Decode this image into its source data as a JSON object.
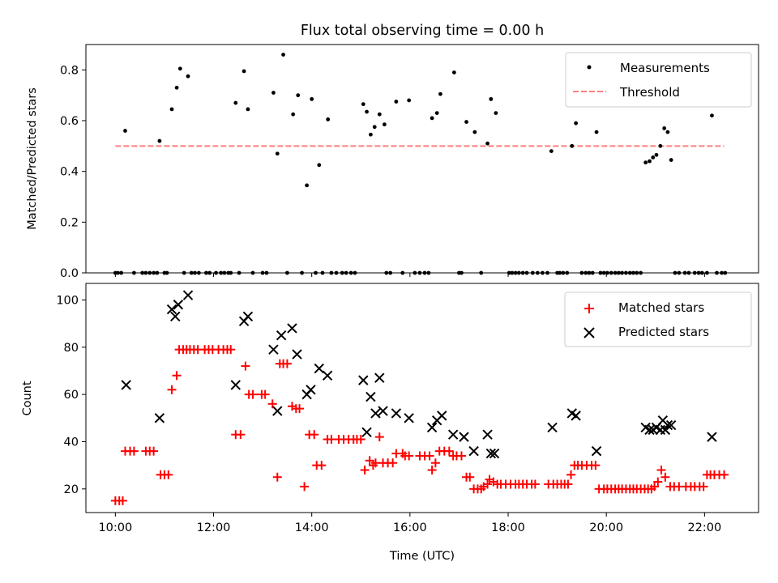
{
  "figure": {
    "title": "Flux total observing time = 0.00 h"
  },
  "chart_data": [
    {
      "type": "scatter",
      "panel": "top",
      "xlabel": "",
      "ylabel": "Matched/Predicted stars",
      "xlim": [
        9.4,
        23.1
      ],
      "ylim": [
        0,
        0.9
      ],
      "yticks": [
        0.0,
        0.2,
        0.4,
        0.6,
        0.8
      ],
      "ytick_labels": [
        "0.0",
        "0.2",
        "0.4",
        "0.6",
        "0.8"
      ],
      "xticks": [
        10,
        12,
        14,
        16,
        18,
        20,
        22
      ],
      "grid": false,
      "legend_position": "top-right",
      "threshold": {
        "name": "Threshold",
        "y": 0.5,
        "x": [
          10.0,
          22.4
        ],
        "color": "#ff7f7f",
        "style": "dashed"
      },
      "series": [
        {
          "name": "Measurements",
          "color": "#000000",
          "marker": "dot",
          "x": [
            10.2,
            10.9,
            11.15,
            11.25,
            11.32,
            11.48,
            12.45,
            12.62,
            12.7,
            13.22,
            13.3,
            13.42,
            13.62,
            13.72,
            13.9,
            14.0,
            14.15,
            14.33,
            15.05,
            15.12,
            15.2,
            15.28,
            15.38,
            15.48,
            15.72,
            15.98,
            16.45,
            16.55,
            16.62,
            16.9,
            17.15,
            17.32,
            17.58,
            17.65,
            17.75,
            18.88,
            19.3,
            19.38,
            19.8,
            20.8,
            20.88,
            20.95,
            21.02,
            21.1,
            21.18,
            21.25,
            21.32,
            22.15
          ],
          "y": [
            0.56,
            0.52,
            0.645,
            0.73,
            0.805,
            0.775,
            0.67,
            0.795,
            0.645,
            0.71,
            0.47,
            0.86,
            0.625,
            0.7,
            0.345,
            0.685,
            0.425,
            0.605,
            0.665,
            0.635,
            0.545,
            0.575,
            0.625,
            0.585,
            0.675,
            0.68,
            0.61,
            0.63,
            0.705,
            0.79,
            0.595,
            0.555,
            0.51,
            0.685,
            0.63,
            0.48,
            0.5,
            0.59,
            0.555,
            0.435,
            0.44,
            0.455,
            0.465,
            0.5,
            0.57,
            0.555,
            0.445,
            0.62
          ]
        },
        {
          "name": "Measurements (zero)",
          "color": "#000000",
          "marker": "dot",
          "x": [
            10.0,
            10.05,
            10.12,
            10.38,
            10.55,
            10.62,
            10.7,
            10.78,
            10.85,
            11.0,
            11.05,
            11.4,
            11.55,
            11.62,
            11.7,
            11.85,
            11.92,
            12.05,
            12.15,
            12.22,
            12.3,
            12.35,
            12.52,
            12.8,
            13.0,
            13.08,
            13.5,
            13.8,
            14.08,
            14.22,
            14.4,
            14.5,
            14.62,
            14.7,
            14.8,
            14.88,
            15.52,
            15.6,
            15.85,
            16.1,
            16.2,
            16.3,
            16.38,
            17.0,
            17.05,
            17.45,
            18.02,
            18.08,
            18.15,
            18.22,
            18.3,
            18.38,
            18.5,
            18.6,
            18.7,
            18.8,
            19.0,
            19.05,
            19.12,
            19.2,
            19.5,
            19.58,
            19.65,
            19.72,
            19.88,
            19.95,
            20.02,
            20.1,
            20.18,
            20.25,
            20.32,
            20.4,
            20.48,
            20.55,
            20.62,
            20.7,
            21.4,
            21.48,
            21.6,
            21.68,
            21.8,
            21.88,
            21.95,
            22.05,
            22.25,
            22.35,
            22.42
          ],
          "y_const": 0.0
        }
      ],
      "legend": [
        "Measurements",
        "Threshold"
      ]
    },
    {
      "type": "scatter",
      "panel": "bottom",
      "xlabel": "Time (UTC)",
      "ylabel": "Count",
      "xlim": [
        9.4,
        23.1
      ],
      "ylim": [
        10,
        107
      ],
      "yticks": [
        20,
        40,
        60,
        80,
        100
      ],
      "ytick_labels": [
        "20",
        "40",
        "60",
        "80",
        "100"
      ],
      "xticks": [
        10,
        12,
        14,
        16,
        18,
        20,
        22
      ],
      "xtick_labels": [
        "10:00",
        "12:00",
        "14:00",
        "16:00",
        "18:00",
        "20:00",
        "22:00"
      ],
      "grid": false,
      "legend_position": "top-right",
      "legend": [
        "Matched stars",
        "Predicted stars"
      ],
      "series": [
        {
          "name": "Matched stars",
          "color": "#ff0000",
          "marker": "plus",
          "points": [
            [
              10.0,
              15
            ],
            [
              10.08,
              15
            ],
            [
              10.15,
              15
            ],
            [
              10.2,
              36
            ],
            [
              10.3,
              36
            ],
            [
              10.38,
              36
            ],
            [
              10.62,
              36
            ],
            [
              10.7,
              36
            ],
            [
              10.78,
              36
            ],
            [
              10.92,
              26
            ],
            [
              11.0,
              26
            ],
            [
              11.08,
              26
            ],
            [
              11.15,
              62
            ],
            [
              11.25,
              68
            ],
            [
              11.3,
              79
            ],
            [
              11.38,
              79
            ],
            [
              11.45,
              79
            ],
            [
              11.52,
              79
            ],
            [
              11.6,
              79
            ],
            [
              11.68,
              79
            ],
            [
              11.82,
              79
            ],
            [
              11.9,
              79
            ],
            [
              11.98,
              79
            ],
            [
              12.1,
              79
            ],
            [
              12.2,
              79
            ],
            [
              12.28,
              79
            ],
            [
              12.35,
              79
            ],
            [
              12.45,
              43
            ],
            [
              12.55,
              43
            ],
            [
              12.65,
              72
            ],
            [
              12.72,
              60
            ],
            [
              12.8,
              60
            ],
            [
              12.98,
              60
            ],
            [
              13.05,
              60
            ],
            [
              13.2,
              56
            ],
            [
              13.3,
              25
            ],
            [
              13.35,
              73
            ],
            [
              13.42,
              73
            ],
            [
              13.5,
              73
            ],
            [
              13.6,
              55
            ],
            [
              13.68,
              54
            ],
            [
              13.75,
              54
            ],
            [
              13.85,
              21
            ],
            [
              13.95,
              43
            ],
            [
              14.05,
              43
            ],
            [
              14.1,
              30
            ],
            [
              14.2,
              30
            ],
            [
              14.32,
              41
            ],
            [
              14.4,
              41
            ],
            [
              14.55,
              41
            ],
            [
              14.65,
              41
            ],
            [
              14.75,
              41
            ],
            [
              14.85,
              41
            ],
            [
              14.92,
              41
            ],
            [
              15.0,
              41
            ],
            [
              15.08,
              28
            ],
            [
              15.18,
              32
            ],
            [
              15.25,
              30
            ],
            [
              15.3,
              31
            ],
            [
              15.38,
              42
            ],
            [
              15.45,
              31
            ],
            [
              15.55,
              31
            ],
            [
              15.65,
              31
            ],
            [
              15.72,
              35
            ],
            [
              15.85,
              35
            ],
            [
              15.9,
              34
            ],
            [
              15.98,
              34
            ],
            [
              16.2,
              34
            ],
            [
              16.3,
              34
            ],
            [
              16.4,
              34
            ],
            [
              16.45,
              28
            ],
            [
              16.52,
              31
            ],
            [
              16.6,
              36
            ],
            [
              16.7,
              36
            ],
            [
              16.8,
              36
            ],
            [
              16.88,
              34
            ],
            [
              16.95,
              34
            ],
            [
              17.05,
              34
            ],
            [
              17.15,
              25
            ],
            [
              17.22,
              25
            ],
            [
              17.3,
              20
            ],
            [
              17.38,
              20
            ],
            [
              17.45,
              20
            ],
            [
              17.5,
              21
            ],
            [
              17.58,
              22
            ],
            [
              17.62,
              24
            ],
            [
              17.7,
              23
            ],
            [
              17.78,
              22
            ],
            [
              17.85,
              22
            ],
            [
              17.95,
              22
            ],
            [
              18.05,
              22
            ],
            [
              18.15,
              22
            ],
            [
              18.22,
              22
            ],
            [
              18.3,
              22
            ],
            [
              18.38,
              22
            ],
            [
              18.48,
              22
            ],
            [
              18.55,
              22
            ],
            [
              18.82,
              22
            ],
            [
              18.92,
              22
            ],
            [
              19.0,
              22
            ],
            [
              19.08,
              22
            ],
            [
              19.15,
              22
            ],
            [
              19.22,
              22
            ],
            [
              19.28,
              26
            ],
            [
              19.35,
              30
            ],
            [
              19.42,
              30
            ],
            [
              19.5,
              30
            ],
            [
              19.6,
              30
            ],
            [
              19.7,
              30
            ],
            [
              19.78,
              30
            ],
            [
              19.85,
              20
            ],
            [
              19.95,
              20
            ],
            [
              20.02,
              20
            ],
            [
              20.1,
              20
            ],
            [
              20.18,
              20
            ],
            [
              20.25,
              20
            ],
            [
              20.32,
              20
            ],
            [
              20.4,
              20
            ],
            [
              20.48,
              20
            ],
            [
              20.55,
              20
            ],
            [
              20.62,
              20
            ],
            [
              20.7,
              20
            ],
            [
              20.78,
              20
            ],
            [
              20.85,
              20
            ],
            [
              20.92,
              20
            ],
            [
              20.98,
              21
            ],
            [
              21.05,
              23
            ],
            [
              21.12,
              28
            ],
            [
              21.2,
              25
            ],
            [
              21.3,
              21
            ],
            [
              21.38,
              21
            ],
            [
              21.48,
              21
            ],
            [
              21.62,
              21
            ],
            [
              21.72,
              21
            ],
            [
              21.8,
              21
            ],
            [
              21.9,
              21
            ],
            [
              21.98,
              21
            ],
            [
              22.05,
              26
            ],
            [
              22.12,
              26
            ],
            [
              22.2,
              26
            ],
            [
              22.3,
              26
            ],
            [
              22.4,
              26
            ]
          ]
        },
        {
          "name": "Predicted stars",
          "color": "#000000",
          "marker": "x",
          "points": [
            [
              10.22,
              64
            ],
            [
              10.9,
              50
            ],
            [
              11.15,
              96
            ],
            [
              11.22,
              93
            ],
            [
              11.28,
              98
            ],
            [
              11.48,
              102
            ],
            [
              12.45,
              64
            ],
            [
              12.62,
              91
            ],
            [
              12.7,
              93
            ],
            [
              13.22,
              79
            ],
            [
              13.3,
              53
            ],
            [
              13.38,
              85
            ],
            [
              13.6,
              88
            ],
            [
              13.7,
              77
            ],
            [
              13.9,
              60
            ],
            [
              13.98,
              62
            ],
            [
              14.15,
              71
            ],
            [
              14.32,
              68
            ],
            [
              15.05,
              66
            ],
            [
              15.12,
              44
            ],
            [
              15.2,
              59
            ],
            [
              15.3,
              52
            ],
            [
              15.38,
              67
            ],
            [
              15.45,
              53
            ],
            [
              15.72,
              52
            ],
            [
              15.98,
              50
            ],
            [
              16.45,
              46
            ],
            [
              16.55,
              49
            ],
            [
              16.65,
              51
            ],
            [
              16.88,
              43
            ],
            [
              17.1,
              42
            ],
            [
              17.3,
              36
            ],
            [
              17.58,
              43
            ],
            [
              17.65,
              35
            ],
            [
              17.72,
              35
            ],
            [
              18.9,
              46
            ],
            [
              19.3,
              52
            ],
            [
              19.38,
              51
            ],
            [
              19.8,
              36
            ],
            [
              20.8,
              46
            ],
            [
              20.88,
              45
            ],
            [
              20.95,
              45
            ],
            [
              21.02,
              46
            ],
            [
              21.1,
              45
            ],
            [
              21.15,
              49
            ],
            [
              21.2,
              45
            ],
            [
              21.25,
              47
            ],
            [
              21.32,
              47
            ],
            [
              22.15,
              42
            ]
          ]
        }
      ]
    }
  ]
}
